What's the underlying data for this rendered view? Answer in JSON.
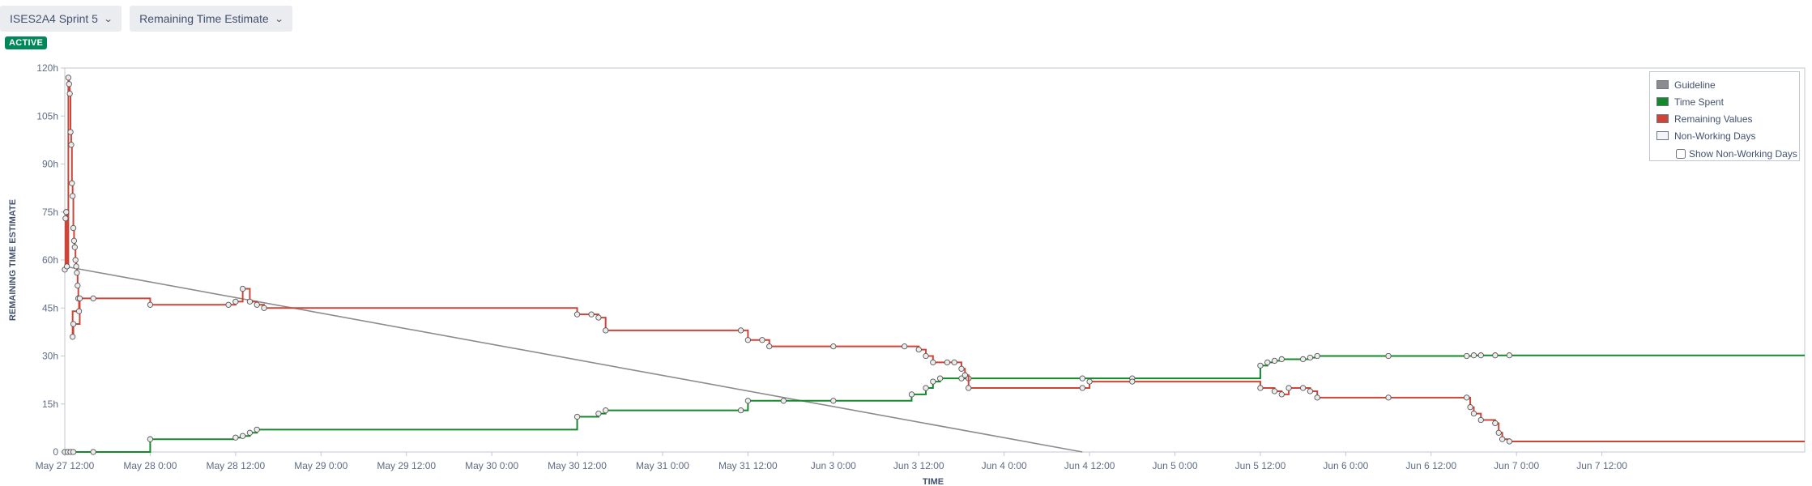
{
  "toolbar": {
    "sprint_label": "ISES2A4 Sprint 5",
    "report_label": "Remaining Time Estimate"
  },
  "status_badge": "ACTIVE",
  "legend": {
    "items": [
      {
        "label": "Guideline",
        "color": "#8c8c8c"
      },
      {
        "label": "Time Spent",
        "color": "#14892c"
      },
      {
        "label": "Remaining Values",
        "color": "#d04437"
      },
      {
        "label": "Non-Working Days",
        "color": "#f4f5f7"
      }
    ],
    "toggle_label": "Show Non-Working Days",
    "toggle_checked": false
  },
  "chart_data": {
    "type": "line",
    "title": "",
    "xlabel": "TIME",
    "ylabel": "REMAINING TIME ESTIMATE",
    "grid": false,
    "legend_position": "top-right",
    "x_unit": "hours since May 27 00:00",
    "xlim": [
      12,
      256.5
    ],
    "ylim": [
      0,
      120
    ],
    "x_ticks": [
      {
        "label": "May 27 12:00",
        "x": 12
      },
      {
        "label": "May 28 0:00",
        "x": 24
      },
      {
        "label": "May 28 12:00",
        "x": 36
      },
      {
        "label": "May 29 0:00",
        "x": 48
      },
      {
        "label": "May 29 12:00",
        "x": 60
      },
      {
        "label": "May 30 0:00",
        "x": 72
      },
      {
        "label": "May 30 12:00",
        "x": 84
      },
      {
        "label": "May 31 0:00",
        "x": 96
      },
      {
        "label": "May 31 12:00",
        "x": 108
      },
      {
        "label": "Jun 3 0:00",
        "x": 120
      },
      {
        "label": "Jun 3 12:00",
        "x": 132
      },
      {
        "label": "Jun 4 0:00",
        "x": 144
      },
      {
        "label": "Jun 4 12:00",
        "x": 156
      },
      {
        "label": "Jun 5 0:00",
        "x": 168
      },
      {
        "label": "Jun 5 12:00",
        "x": 180
      },
      {
        "label": "Jun 6 0:00",
        "x": 192
      },
      {
        "label": "Jun 6 12:00",
        "x": 204
      },
      {
        "label": "Jun 7 0:00",
        "x": 216
      },
      {
        "label": "Jun 7 12:00",
        "x": 228
      }
    ],
    "y_ticks": [
      {
        "label": "0",
        "y": 0
      },
      {
        "label": "15h",
        "y": 15
      },
      {
        "label": "30h",
        "y": 30
      },
      {
        "label": "45h",
        "y": 45
      },
      {
        "label": "60h",
        "y": 60
      },
      {
        "label": "75h",
        "y": 75
      },
      {
        "label": "90h",
        "y": 90
      },
      {
        "label": "105h",
        "y": 105
      },
      {
        "label": "120h",
        "y": 120
      }
    ],
    "series": [
      {
        "name": "Guideline",
        "color": "#8c8c8c",
        "step": false,
        "points": [
          [
            12,
            58
          ],
          [
            155,
            0
          ]
        ]
      },
      {
        "name": "Time Spent",
        "color": "#14892c",
        "step": true,
        "points": [
          [
            12,
            0
          ],
          [
            12.4,
            0
          ],
          [
            12.8,
            0
          ],
          [
            13.2,
            0
          ],
          [
            16,
            0
          ],
          [
            24,
            4
          ],
          [
            36,
            4.5
          ],
          [
            37,
            5
          ],
          [
            38,
            6
          ],
          [
            39,
            7
          ],
          [
            84,
            11
          ],
          [
            87,
            12
          ],
          [
            88,
            13
          ],
          [
            107,
            13
          ],
          [
            108,
            16
          ],
          [
            113,
            16
          ],
          [
            120,
            16
          ],
          [
            131,
            18
          ],
          [
            133,
            20
          ],
          [
            134,
            22
          ],
          [
            135,
            23
          ],
          [
            138,
            23
          ],
          [
            139,
            23
          ],
          [
            155,
            23
          ],
          [
            162,
            23
          ],
          [
            180,
            27
          ],
          [
            181,
            28
          ],
          [
            182,
            28.5
          ],
          [
            183,
            29
          ],
          [
            186,
            29
          ],
          [
            187,
            29.5
          ],
          [
            188,
            30
          ],
          [
            198,
            30
          ],
          [
            209,
            30
          ],
          [
            210,
            30.2
          ],
          [
            211,
            30.2
          ],
          [
            213,
            30.2
          ],
          [
            215,
            30.2
          ],
          [
            256.5,
            30.2
          ]
        ]
      },
      {
        "name": "Remaining Values",
        "color": "#d04437",
        "step": true,
        "points": [
          [
            12,
            57
          ],
          [
            12.1,
            73
          ],
          [
            12.2,
            75
          ],
          [
            12.3,
            58
          ],
          [
            12.5,
            117
          ],
          [
            12.6,
            115
          ],
          [
            12.7,
            112
          ],
          [
            12.8,
            100
          ],
          [
            12.9,
            96
          ],
          [
            13,
            84
          ],
          [
            13.1,
            80
          ],
          [
            13.2,
            70
          ],
          [
            13.3,
            66
          ],
          [
            13.4,
            64
          ],
          [
            13.5,
            60
          ],
          [
            13.6,
            58
          ],
          [
            13.7,
            56
          ],
          [
            13.8,
            52
          ],
          [
            13.9,
            48
          ],
          [
            14,
            44
          ],
          [
            13.1,
            36
          ],
          [
            13.2,
            40
          ],
          [
            14.1,
            48
          ],
          [
            16,
            48
          ],
          [
            24,
            46
          ],
          [
            35,
            46
          ],
          [
            36,
            47
          ],
          [
            37,
            51
          ],
          [
            38,
            47
          ],
          [
            39,
            46
          ],
          [
            40,
            45
          ],
          [
            84,
            43
          ],
          [
            86,
            43
          ],
          [
            87,
            42
          ],
          [
            88,
            38
          ],
          [
            107,
            38
          ],
          [
            108,
            35
          ],
          [
            110,
            35
          ],
          [
            111,
            33
          ],
          [
            120,
            33
          ],
          [
            130,
            33
          ],
          [
            132,
            32
          ],
          [
            133,
            30
          ],
          [
            134,
            28
          ],
          [
            136,
            28
          ],
          [
            137,
            28
          ],
          [
            138,
            26
          ],
          [
            138.5,
            24
          ],
          [
            139,
            20
          ],
          [
            155,
            20
          ],
          [
            156,
            22
          ],
          [
            162,
            22
          ],
          [
            180,
            20
          ],
          [
            182,
            19
          ],
          [
            183,
            18
          ],
          [
            184,
            20
          ],
          [
            186,
            20
          ],
          [
            187,
            19
          ],
          [
            188,
            17
          ],
          [
            198,
            17
          ],
          [
            209,
            17
          ],
          [
            209.5,
            14
          ],
          [
            210,
            12
          ],
          [
            211,
            10
          ],
          [
            213,
            9
          ],
          [
            213.5,
            6
          ],
          [
            214,
            4
          ],
          [
            215,
            3.3
          ],
          [
            256.5,
            3.3
          ]
        ]
      }
    ]
  }
}
